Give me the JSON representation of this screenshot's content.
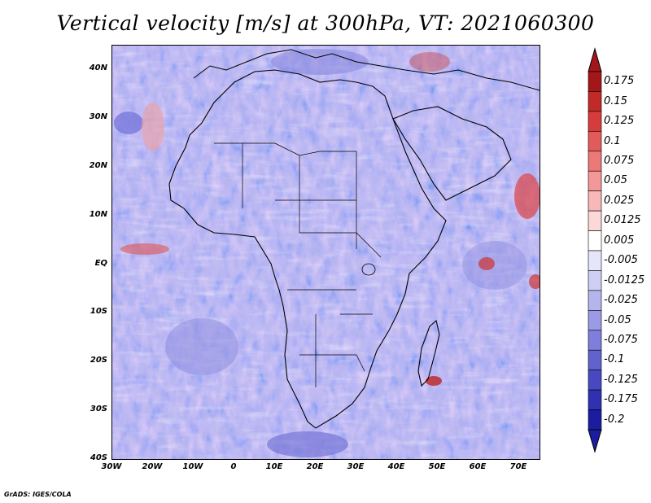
{
  "title": "Vertical velocity [m/s] at 300hPa, VT: 2021060300",
  "footer": "GrADS: IGES/COLA",
  "map": {
    "region": "Africa",
    "lat_labels": [
      "40N",
      "30N",
      "20N",
      "10N",
      "EQ",
      "10S",
      "20S",
      "30S",
      "40S"
    ],
    "lon_labels": [
      "30W",
      "20W",
      "10W",
      "0",
      "10E",
      "20E",
      "30E",
      "40E",
      "50E",
      "60E",
      "70E"
    ],
    "lat_range": [
      -40,
      45
    ],
    "lon_range": [
      -30,
      75
    ]
  },
  "colorbar": {
    "labels": [
      "0.175",
      "0.15",
      "0.125",
      "0.1",
      "0.075",
      "0.05",
      "0.025",
      "0.0125",
      "0.005",
      "-0.005",
      "-0.0125",
      "-0.025",
      "-0.05",
      "-0.075",
      "-0.1",
      "-0.125",
      "-0.175",
      "-0.2"
    ],
    "colors": [
      "#a3171a",
      "#c22a28",
      "#d63c3c",
      "#e35a5a",
      "#ec7878",
      "#f39898",
      "#f8b8b8",
      "#fcd8d8",
      "#ffffff",
      "#e6e6fa",
      "#cfcff5",
      "#b5b5ee",
      "#9a9ae6",
      "#7e7edc",
      "#6262cf",
      "#4848c2",
      "#3030b2",
      "#1c1ca0"
    ],
    "top_color": "#a3171a",
    "bottom_color": "#1c1ca0"
  }
}
